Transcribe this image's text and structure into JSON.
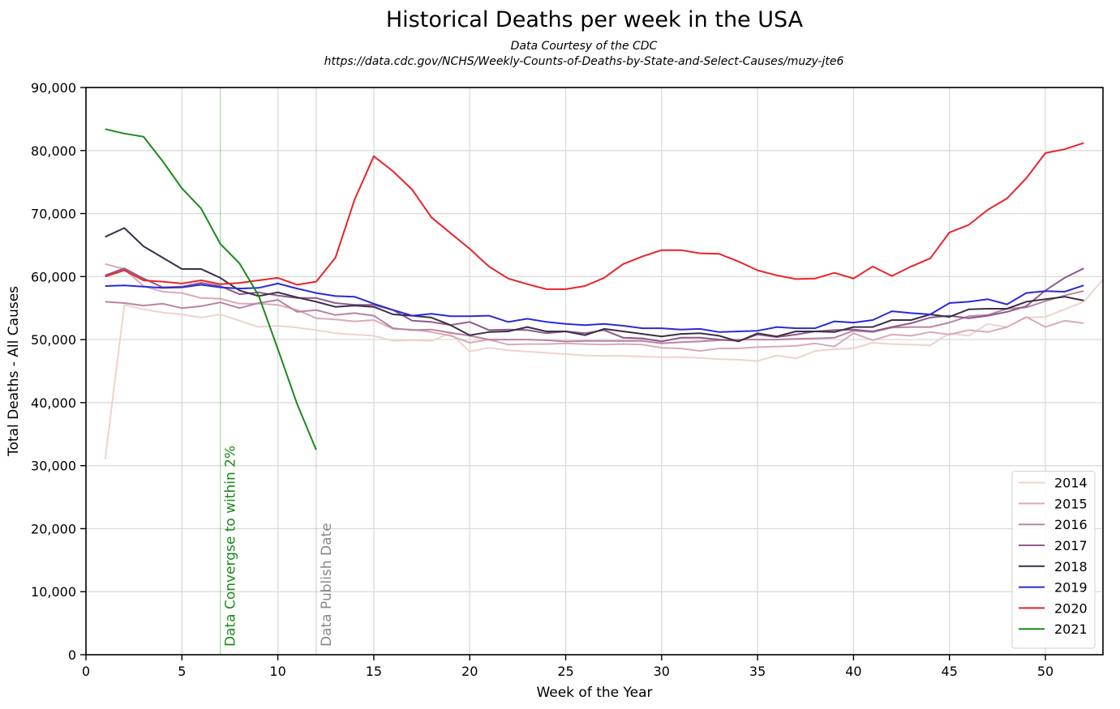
{
  "chart_data": {
    "type": "line",
    "title": "Historical Deaths per week in the USA",
    "subtitle_lines": [
      "Data Courtesy of the CDC",
      "https://data.cdc.gov/NCHS/Weekly-Counts-of-Deaths-by-State-and-Select-Causes/muzy-jte6"
    ],
    "xlabel": "Week of the Year",
    "ylabel": "Total Deaths - All Causes",
    "xlim": [
      0,
      53
    ],
    "ylim": [
      0,
      90000
    ],
    "x_ticks": [
      0,
      5,
      10,
      15,
      20,
      25,
      30,
      35,
      40,
      45,
      50
    ],
    "y_ticks": [
      0,
      10000,
      20000,
      30000,
      40000,
      50000,
      60000,
      70000,
      80000,
      90000
    ],
    "y_tick_labels": [
      "0",
      "10,000",
      "20,000",
      "30,000",
      "40,000",
      "50,000",
      "60,000",
      "70,000",
      "80,000",
      "90,000"
    ],
    "grid": true,
    "legend_position": "lower-right",
    "annotations": [
      {
        "x": 7,
        "text": "Data Convergse to within 2%",
        "color": "#1a8a1a"
      },
      {
        "x": 12,
        "text": "Data Publish Date",
        "color": "#888888"
      }
    ],
    "series": [
      {
        "name": "2014",
        "color": "#f0d2cc",
        "x_start": 1,
        "values": [
          31000,
          55500,
          54800,
          54300,
          54000,
          53500,
          54000,
          53000,
          52000,
          52200,
          51900,
          51500,
          51000,
          50800,
          50600,
          49800,
          49900,
          49800,
          51000,
          48100,
          48700,
          48300,
          48100,
          47900,
          47700,
          47500,
          47400,
          47400,
          47300,
          47200,
          47200,
          47100,
          46900,
          46800,
          46600,
          47500,
          47000,
          48200,
          48500,
          48600,
          49500,
          49300,
          49200,
          49100,
          51000,
          50600,
          52500,
          52000,
          53500,
          53600,
          54800,
          56000,
          59500
        ]
      },
      {
        "name": "2015",
        "color": "#d9aab8",
        "x_start": 1,
        "values": [
          62000,
          61200,
          58500,
          57600,
          57400,
          56600,
          56500,
          55700,
          55700,
          55500,
          54700,
          53400,
          53200,
          52900,
          53100,
          51700,
          51600,
          51200,
          50600,
          49500,
          50000,
          49200,
          49300,
          49300,
          49400,
          49300,
          49200,
          49300,
          49200,
          48700,
          48600,
          48200,
          48600,
          48600,
          48800,
          48900,
          49000,
          49400,
          48900,
          51000,
          49900,
          50800,
          50600,
          51200,
          50800,
          51500,
          51200,
          52000,
          53600,
          52000,
          53000,
          52600
        ]
      },
      {
        "name": "2016",
        "color": "#b884a4",
        "x_start": 1,
        "values": [
          56000,
          55800,
          55400,
          55700,
          55000,
          55300,
          55900,
          55000,
          55800,
          56300,
          54400,
          54700,
          53900,
          54200,
          53800,
          51800,
          51500,
          51600,
          51100,
          50600,
          50000,
          50000,
          50000,
          49900,
          49700,
          49800,
          49800,
          49800,
          49800,
          49400,
          49600,
          49700,
          49900,
          50000,
          50000,
          50000,
          50100,
          50200,
          50300,
          51400,
          51200,
          51900,
          52000,
          52000,
          52700,
          53700,
          53900,
          54900,
          55100,
          56100,
          57000,
          57700
        ]
      },
      {
        "name": "2017",
        "color": "#8e5a8c",
        "x_start": 1,
        "values": [
          60200,
          61300,
          59700,
          58300,
          58400,
          59000,
          58500,
          57200,
          57500,
          57000,
          56600,
          56600,
          55800,
          55500,
          55500,
          54700,
          53000,
          52800,
          52300,
          52800,
          51500,
          51600,
          51500,
          51000,
          51300,
          51000,
          51500,
          50300,
          50200,
          49700,
          50300,
          50300,
          50000,
          49800,
          50800,
          50400,
          50800,
          51300,
          51500,
          51600,
          51300,
          52000,
          52600,
          53500,
          53800,
          53400,
          53800,
          54400,
          55300,
          57800,
          59800,
          61300
        ]
      },
      {
        "name": "2018",
        "color": "#3b2f48",
        "x_start": 1,
        "values": [
          66300,
          67700,
          64800,
          63000,
          61200,
          61200,
          59800,
          57800,
          56900,
          57500,
          56700,
          56000,
          55200,
          55400,
          55200,
          54000,
          53800,
          53500,
          52300,
          50700,
          51200,
          51300,
          52000,
          51300,
          51300,
          50700,
          51700,
          51300,
          50900,
          50500,
          50900,
          51000,
          50600,
          49700,
          51000,
          50500,
          51300,
          51300,
          51200,
          52000,
          52000,
          53100,
          53100,
          54000,
          53600,
          54800,
          54900,
          54900,
          56000,
          56400,
          56800,
          56200
        ]
      },
      {
        "name": "2019",
        "color": "#2a2adb",
        "x_start": 1,
        "values": [
          58500,
          58600,
          58400,
          58200,
          58300,
          58700,
          58300,
          58100,
          58200,
          58900,
          58100,
          57400,
          56900,
          56800,
          55700,
          54700,
          53800,
          54100,
          53700,
          53700,
          53800,
          52800,
          53300,
          52800,
          52500,
          52300,
          52500,
          52200,
          51800,
          51800,
          51600,
          51700,
          51200,
          51300,
          51400,
          52000,
          51800,
          51800,
          52900,
          52700,
          53100,
          54500,
          54200,
          54000,
          55800,
          56000,
          56400,
          55600,
          57400,
          57700,
          57600,
          58600
        ]
      },
      {
        "name": "2020",
        "color": "#e8252a",
        "x_start": 1,
        "values": [
          60000,
          61000,
          59400,
          59200,
          58900,
          59400,
          58800,
          59000,
          59400,
          59800,
          58700,
          59200,
          63000,
          72200,
          79100,
          76700,
          73800,
          69400,
          66900,
          64400,
          61600,
          59700,
          58800,
          58000,
          58000,
          58500,
          59800,
          62000,
          63200,
          64200,
          64200,
          63700,
          63600,
          62400,
          61000,
          60200,
          59600,
          59700,
          60600,
          59700,
          61600,
          60100,
          61600,
          62900,
          67000,
          68200,
          70600,
          72400,
          75600,
          79600,
          80200,
          81200
        ]
      },
      {
        "name": "2021",
        "color": "#1a8a1a",
        "x_start": 1,
        "values": [
          83400,
          82700,
          82200,
          78300,
          74000,
          70800,
          65200,
          62100,
          57000,
          48500,
          39800,
          32500
        ]
      }
    ]
  }
}
